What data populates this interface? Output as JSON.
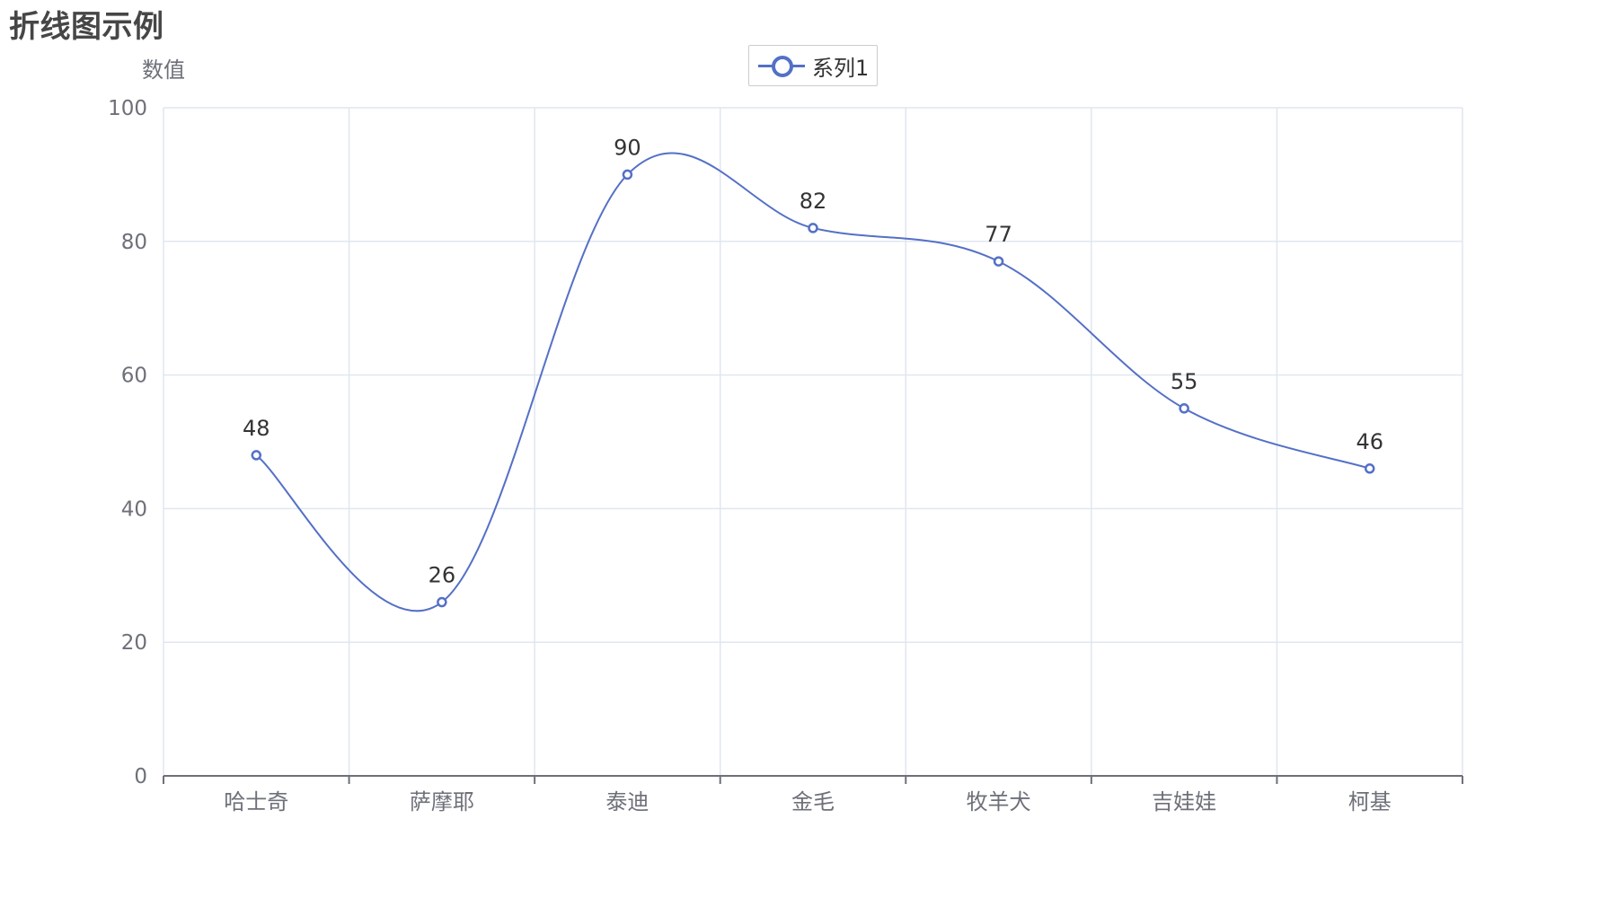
{
  "chart_data": {
    "type": "line",
    "title": "折线图示例",
    "ylabel": "数值",
    "xlabel": "",
    "categories": [
      "哈士奇",
      "萨摩耶",
      "泰迪",
      "金毛",
      "牧羊犬",
      "吉娃娃",
      "柯基"
    ],
    "series": [
      {
        "name": "系列1",
        "values": [
          48,
          26,
          90,
          82,
          77,
          55,
          46
        ],
        "smooth": true,
        "color": "#5470c6",
        "show_labels": true
      }
    ],
    "ylim": [
      0,
      100
    ],
    "yticks": [
      0,
      20,
      40,
      60,
      80,
      100
    ],
    "grid": true,
    "legend_position": "top-center"
  }
}
